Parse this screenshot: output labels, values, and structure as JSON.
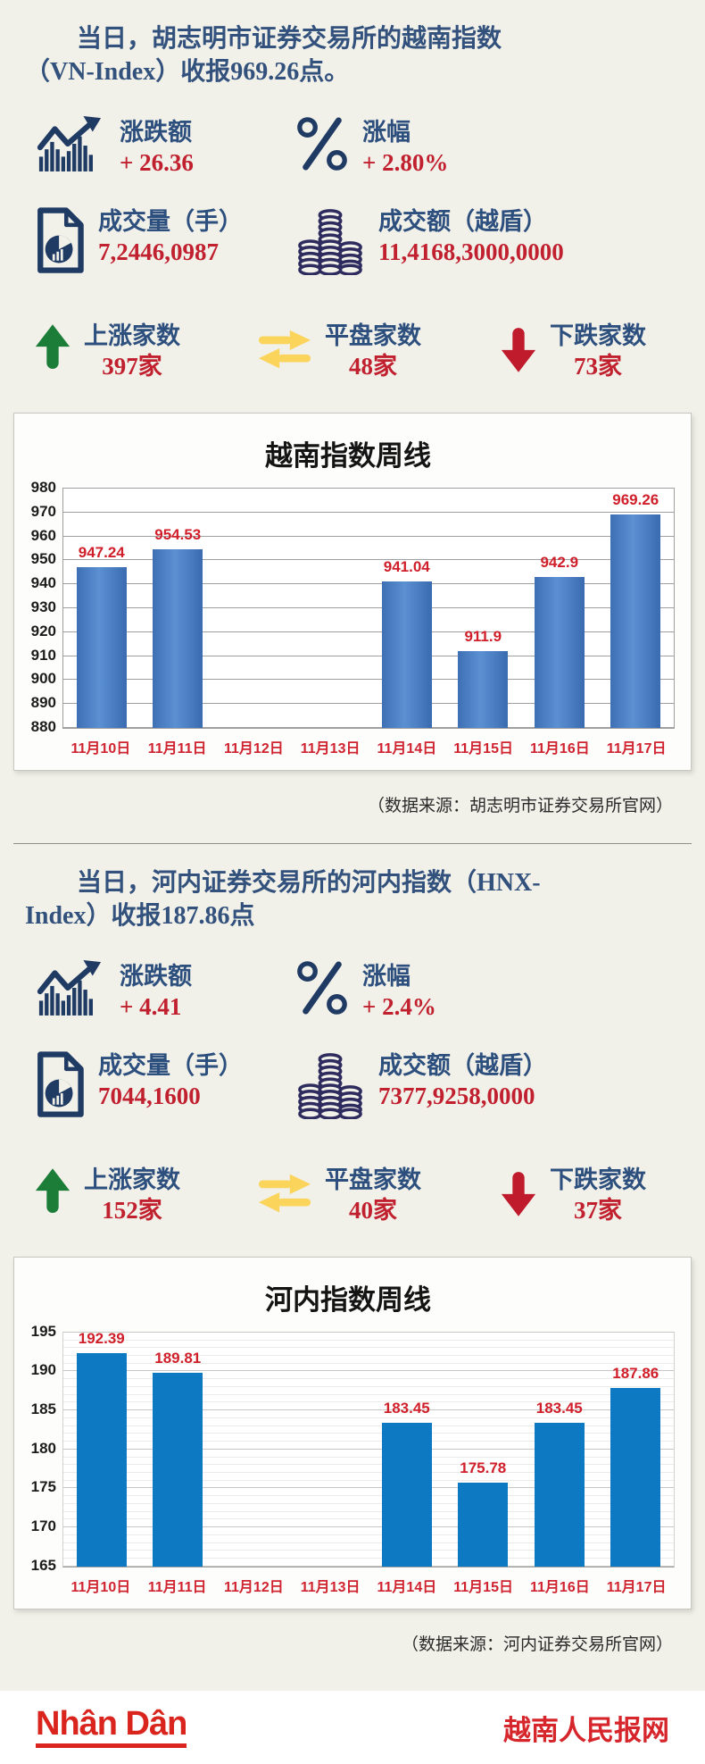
{
  "colors": {
    "background": "#f1f0e9",
    "navy": "#2d4f7e",
    "red": "#c1202f",
    "green_up": "#1b7d38",
    "yellow_flat": "#fbd45c",
    "red_down": "#bf1b2c",
    "bar_blue_vn": "#3e6fb4",
    "bar_blue_hnx": "#0d79c3"
  },
  "section_hose": {
    "title_line1": "当日，胡志明市证券交易所的越南指数",
    "title_line2": "（VN-Index）收报969.26点。",
    "stats": [
      {
        "icon": "trend-chart-icon",
        "label": "涨跌额",
        "value": "+ 26.36"
      },
      {
        "icon": "percent-icon",
        "label": "涨幅",
        "value": "+ 2.80%"
      },
      {
        "icon": "document-pie-icon",
        "label": "成交量（手）",
        "value": "7,2446,0987"
      },
      {
        "icon": "coins-icon",
        "label": "成交额（越盾）",
        "value": "11,4168,3000,0000"
      },
      {
        "icon": "up-arrow-icon",
        "label": "上涨家数",
        "value": "397家"
      },
      {
        "icon": "swap-arrows-icon",
        "label": "平盘家数",
        "value": "48家"
      },
      {
        "icon": "down-arrow-icon",
        "label": "下跌家数",
        "value": "73家"
      }
    ],
    "source": "（数据来源：胡志明市证券交易所官网）"
  },
  "section_hnx": {
    "title_line1": "当日，河内证券交易所的河内指数（HNX-",
    "title_line2": "Index）收报187.86点",
    "stats": [
      {
        "icon": "trend-chart-icon",
        "label": "涨跌额",
        "value": "+ 4.41"
      },
      {
        "icon": "percent-icon",
        "label": "涨幅",
        "value": "+ 2.4%"
      },
      {
        "icon": "document-pie-icon",
        "label": "成交量（手）",
        "value": "7044,1600"
      },
      {
        "icon": "coins-icon",
        "label": "成交额（越盾）",
        "value": "7377,9258,0000"
      },
      {
        "icon": "up-arrow-icon",
        "label": "上涨家数",
        "value": "152家"
      },
      {
        "icon": "swap-arrows-icon",
        "label": "平盘家数",
        "value": "40家"
      },
      {
        "icon": "down-arrow-icon",
        "label": "下跌家数",
        "value": "37家"
      }
    ],
    "source": "（数据来源：河内证券交易所官网）"
  },
  "footer": {
    "logo": "Nhân Dân",
    "site_name": "越南人民报网"
  },
  "chart_data": [
    {
      "type": "bar",
      "title": "越南指数周线",
      "categories": [
        "11月10日",
        "11月11日",
        "11月12日",
        "11月13日",
        "11月14日",
        "11月15日",
        "11月16日",
        "11月17日"
      ],
      "values": [
        947.24,
        954.53,
        null,
        null,
        941.04,
        911.9,
        942.9,
        969.26
      ],
      "value_labels": [
        "947.24",
        "954.53",
        "",
        "",
        "941.04",
        "911.9",
        "942.9",
        "969.26"
      ],
      "xlabel": "",
      "ylabel": "",
      "ylim": [
        880,
        980
      ],
      "ytick_step": 10,
      "minor_step": null,
      "grid": true,
      "legend": false,
      "bar_style": "gradient"
    },
    {
      "type": "bar",
      "title": "河内指数周线",
      "categories": [
        "11月10日",
        "11月11日",
        "11月12日",
        "11月13日",
        "11月14日",
        "11月15日",
        "11月16日",
        "11月17日"
      ],
      "values": [
        192.39,
        189.81,
        null,
        null,
        183.45,
        175.78,
        183.45,
        187.86
      ],
      "value_labels": [
        "192.39",
        "189.81",
        "",
        "",
        "183.45",
        "175.78",
        "183.45",
        "187.86"
      ],
      "xlabel": "",
      "ylabel": "",
      "ylim": [
        165,
        195
      ],
      "ytick_step": 5,
      "minor_step": 1,
      "grid": true,
      "legend": false,
      "bar_style": "flat"
    }
  ]
}
